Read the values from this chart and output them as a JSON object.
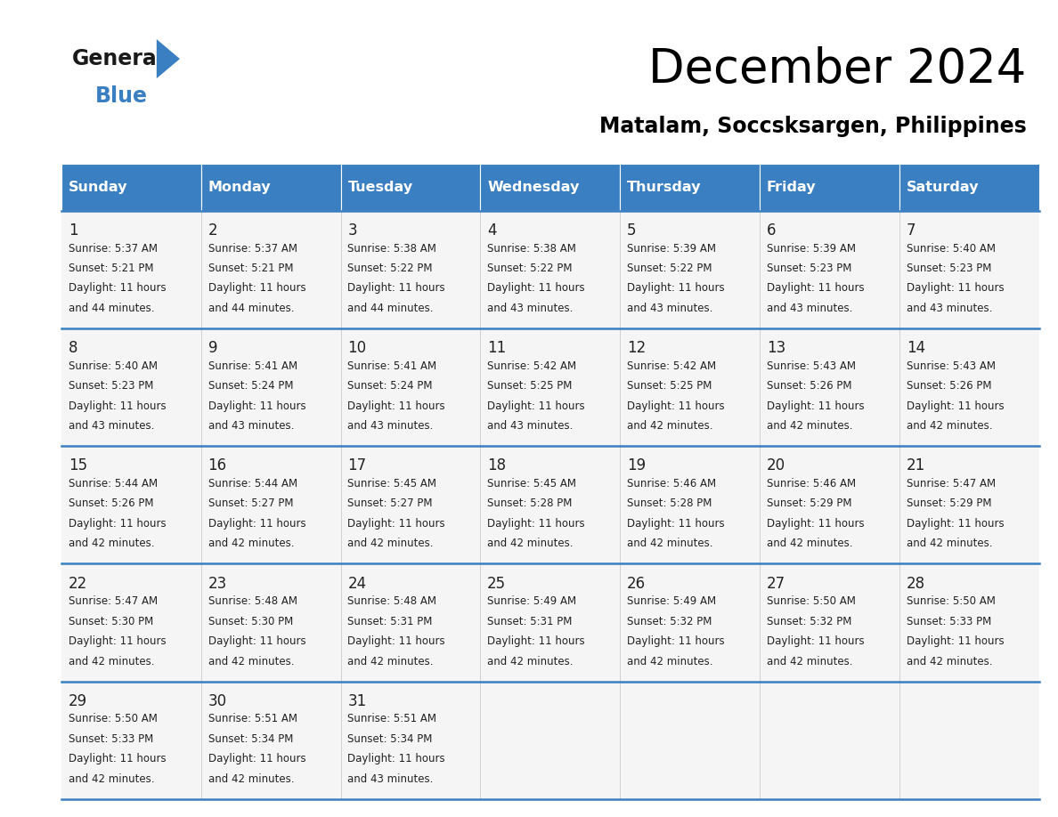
{
  "title": "December 2024",
  "subtitle": "Matalam, Soccsksargen, Philippines",
  "header_color": "#3a7fc1",
  "header_text_color": "#ffffff",
  "cell_bg_color": "#f5f5f5",
  "border_color": "#3a7fc1",
  "text_color": "#222222",
  "days_of_week": [
    "Sunday",
    "Monday",
    "Tuesday",
    "Wednesday",
    "Thursday",
    "Friday",
    "Saturday"
  ],
  "weeks": [
    [
      {
        "day": 1,
        "sunrise": "5:37 AM",
        "sunset": "5:21 PM",
        "daylight": "11 hours and 44 minutes."
      },
      {
        "day": 2,
        "sunrise": "5:37 AM",
        "sunset": "5:21 PM",
        "daylight": "11 hours and 44 minutes."
      },
      {
        "day": 3,
        "sunrise": "5:38 AM",
        "sunset": "5:22 PM",
        "daylight": "11 hours and 44 minutes."
      },
      {
        "day": 4,
        "sunrise": "5:38 AM",
        "sunset": "5:22 PM",
        "daylight": "11 hours and 43 minutes."
      },
      {
        "day": 5,
        "sunrise": "5:39 AM",
        "sunset": "5:22 PM",
        "daylight": "11 hours and 43 minutes."
      },
      {
        "day": 6,
        "sunrise": "5:39 AM",
        "sunset": "5:23 PM",
        "daylight": "11 hours and 43 minutes."
      },
      {
        "day": 7,
        "sunrise": "5:40 AM",
        "sunset": "5:23 PM",
        "daylight": "11 hours and 43 minutes."
      }
    ],
    [
      {
        "day": 8,
        "sunrise": "5:40 AM",
        "sunset": "5:23 PM",
        "daylight": "11 hours and 43 minutes."
      },
      {
        "day": 9,
        "sunrise": "5:41 AM",
        "sunset": "5:24 PM",
        "daylight": "11 hours and 43 minutes."
      },
      {
        "day": 10,
        "sunrise": "5:41 AM",
        "sunset": "5:24 PM",
        "daylight": "11 hours and 43 minutes."
      },
      {
        "day": 11,
        "sunrise": "5:42 AM",
        "sunset": "5:25 PM",
        "daylight": "11 hours and 43 minutes."
      },
      {
        "day": 12,
        "sunrise": "5:42 AM",
        "sunset": "5:25 PM",
        "daylight": "11 hours and 42 minutes."
      },
      {
        "day": 13,
        "sunrise": "5:43 AM",
        "sunset": "5:26 PM",
        "daylight": "11 hours and 42 minutes."
      },
      {
        "day": 14,
        "sunrise": "5:43 AM",
        "sunset": "5:26 PM",
        "daylight": "11 hours and 42 minutes."
      }
    ],
    [
      {
        "day": 15,
        "sunrise": "5:44 AM",
        "sunset": "5:26 PM",
        "daylight": "11 hours and 42 minutes."
      },
      {
        "day": 16,
        "sunrise": "5:44 AM",
        "sunset": "5:27 PM",
        "daylight": "11 hours and 42 minutes."
      },
      {
        "day": 17,
        "sunrise": "5:45 AM",
        "sunset": "5:27 PM",
        "daylight": "11 hours and 42 minutes."
      },
      {
        "day": 18,
        "sunrise": "5:45 AM",
        "sunset": "5:28 PM",
        "daylight": "11 hours and 42 minutes."
      },
      {
        "day": 19,
        "sunrise": "5:46 AM",
        "sunset": "5:28 PM",
        "daylight": "11 hours and 42 minutes."
      },
      {
        "day": 20,
        "sunrise": "5:46 AM",
        "sunset": "5:29 PM",
        "daylight": "11 hours and 42 minutes."
      },
      {
        "day": 21,
        "sunrise": "5:47 AM",
        "sunset": "5:29 PM",
        "daylight": "11 hours and 42 minutes."
      }
    ],
    [
      {
        "day": 22,
        "sunrise": "5:47 AM",
        "sunset": "5:30 PM",
        "daylight": "11 hours and 42 minutes."
      },
      {
        "day": 23,
        "sunrise": "5:48 AM",
        "sunset": "5:30 PM",
        "daylight": "11 hours and 42 minutes."
      },
      {
        "day": 24,
        "sunrise": "5:48 AM",
        "sunset": "5:31 PM",
        "daylight": "11 hours and 42 minutes."
      },
      {
        "day": 25,
        "sunrise": "5:49 AM",
        "sunset": "5:31 PM",
        "daylight": "11 hours and 42 minutes."
      },
      {
        "day": 26,
        "sunrise": "5:49 AM",
        "sunset": "5:32 PM",
        "daylight": "11 hours and 42 minutes."
      },
      {
        "day": 27,
        "sunrise": "5:50 AM",
        "sunset": "5:32 PM",
        "daylight": "11 hours and 42 minutes."
      },
      {
        "day": 28,
        "sunrise": "5:50 AM",
        "sunset": "5:33 PM",
        "daylight": "11 hours and 42 minutes."
      }
    ],
    [
      {
        "day": 29,
        "sunrise": "5:50 AM",
        "sunset": "5:33 PM",
        "daylight": "11 hours and 42 minutes."
      },
      {
        "day": 30,
        "sunrise": "5:51 AM",
        "sunset": "5:34 PM",
        "daylight": "11 hours and 42 minutes."
      },
      {
        "day": 31,
        "sunrise": "5:51 AM",
        "sunset": "5:34 PM",
        "daylight": "11 hours and 43 minutes."
      },
      null,
      null,
      null,
      null
    ]
  ]
}
